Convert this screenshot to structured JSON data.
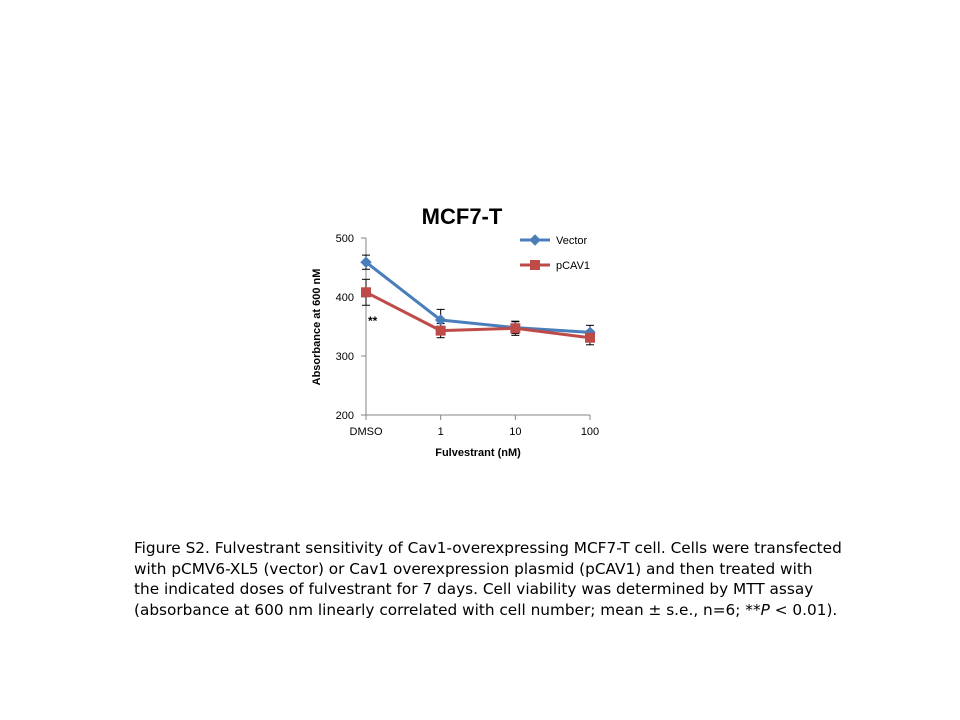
{
  "chart_data": {
    "type": "line",
    "title": "MCF7-T",
    "xlabel": "Fulvestrant (nM)",
    "ylabel": "Absorbance at 600 nM",
    "categories": [
      "DMSO",
      "1",
      "10",
      "100"
    ],
    "ylim": [
      200,
      500
    ],
    "yticks": [
      200,
      300,
      400,
      500
    ],
    "legend_position": "top-right",
    "series": [
      {
        "name": "Vector",
        "color": "#4a7ebb",
        "marker": "diamond",
        "values": [
          459,
          361,
          348,
          340
        ],
        "errors": [
          12,
          18,
          10,
          12
        ]
      },
      {
        "name": "pCAV1",
        "color": "#be4b48",
        "marker": "square",
        "values": [
          408,
          343,
          347,
          331
        ],
        "errors": [
          22,
          12,
          12,
          12
        ]
      }
    ],
    "annotations": [
      {
        "text": "**",
        "category": "DMSO"
      }
    ]
  },
  "caption": {
    "lines": [
      "Figure S2. Fulvestrant sensitivity of Cav1-overexpressing MCF7-T cell. Cells were transfected",
      "with pCMV6-XL5 (vector) or Cav1 overexpression plasmid (pCAV1) and then treated with",
      "the indicated doses of fulvestrant for 7 days. Cell viability was determined by MTT assay"
    ],
    "last_line_start": "(absorbance at 600 nm linearly correlated with cell number; mean ± s.e., n=6; **",
    "last_line_p": "P",
    "last_line_end": " < 0.01)."
  }
}
